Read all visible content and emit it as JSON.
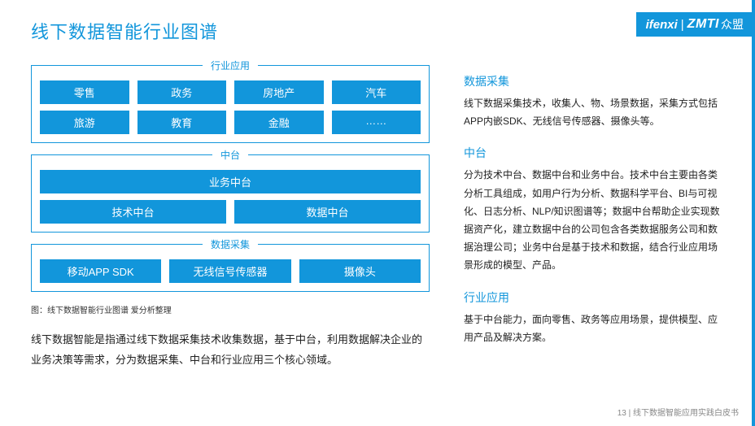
{
  "colors": {
    "accent": "#1296db",
    "text": "#222",
    "bg": "#ffffff"
  },
  "title": "线下数据智能行业图谱",
  "brand": {
    "ifenxi": "ifenxi",
    "sep": "|",
    "zmt": "ZMTI",
    "cn": "众盟"
  },
  "diagram": {
    "type": "layered-boxes",
    "groups": [
      {
        "title": "行业应用",
        "rows": [
          [
            "零售",
            "政务",
            "房地产",
            "汽车"
          ],
          [
            "旅游",
            "教育",
            "金融",
            "……"
          ]
        ]
      },
      {
        "title": "中台",
        "rows": [
          [
            "业务中台"
          ],
          [
            "技术中台",
            "数据中台"
          ]
        ]
      },
      {
        "title": "数据采集",
        "rows": [
          [
            "移动APP SDK",
            "无线信号传感器",
            "摄像头"
          ]
        ]
      }
    ],
    "caption": "图：线下数据智能行业图谱  爱分析整理"
  },
  "left_body": "线下数据智能是指通过线下数据采集技术收集数据，基于中台，利用数据解决企业的业务决策等需求，分为数据采集、中台和行业应用三个核心领域。",
  "sections": [
    {
      "h": "数据采集",
      "p": "线下数据采集技术，收集人、物、场景数据，采集方式包括APP内嵌SDK、无线信号传感器、摄像头等。"
    },
    {
      "h": "中台",
      "p": "分为技术中台、数据中台和业务中台。技术中台主要由各类分析工具组成，如用户行为分析、数据科学平台、BI与可视化、日志分析、NLP/知识图谱等；数据中台帮助企业实现数据资产化，建立数据中台的公司包含各类数据服务公司和数据治理公司；业务中台是基于技术和数据，结合行业应用场景形成的模型、产品。"
    },
    {
      "h": "行业应用",
      "p": "基于中台能力，面向零售、政务等应用场景，提供模型、应用产品及解决方案。"
    }
  ],
  "footer": "13 | 线下数据智能应用实践白皮书"
}
